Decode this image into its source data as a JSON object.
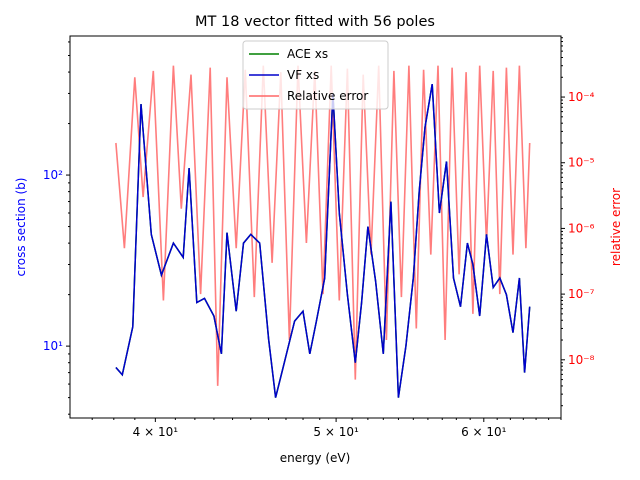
{
  "chart_data": {
    "type": "line",
    "title": "MT 18 vector fitted with 56 poles",
    "xlabel": "energy (eV)",
    "ylabel": "cross section (b)",
    "y2label": "relative error",
    "xscale": "log",
    "yscale": "log",
    "y2scale": "log",
    "xlim": [
      36.0,
      66.0
    ],
    "ylim": [
      3.8,
      650
    ],
    "y2lim": [
      1.3e-09,
      0.00085
    ],
    "x_ticks": [
      {
        "value": 40,
        "label": "4 × 10¹"
      },
      {
        "value": 50,
        "label": "5 × 10¹"
      },
      {
        "value": 60,
        "label": "6 × 10¹"
      }
    ],
    "y_ticks": [
      {
        "value": 10,
        "label": "10¹"
      },
      {
        "value": 100,
        "label": "10²"
      }
    ],
    "y2_ticks": [
      {
        "value": 1e-08,
        "label": "10⁻⁸"
      },
      {
        "value": 1e-07,
        "label": "10⁻⁷"
      },
      {
        "value": 1e-06,
        "label": "10⁻⁶"
      },
      {
        "value": 1e-05,
        "label": "10⁻⁵"
      },
      {
        "value": 0.0001,
        "label": "10⁻⁴"
      }
    ],
    "legend": {
      "placement": "upper-center",
      "entries": [
        {
          "name": "ACE xs",
          "color": "#008000"
        },
        {
          "name": "VF xs",
          "color": "#0000cc"
        },
        {
          "name": "Relative error",
          "color": "#ff6666"
        }
      ]
    },
    "series": [
      {
        "name": "ACE xs",
        "axis": "left",
        "color": "#008000",
        "x": [
          38.1,
          38.4,
          38.9,
          39.3,
          39.8,
          40.3,
          40.9,
          41.4,
          41.7,
          42.1,
          42.5,
          43.0,
          43.4,
          43.7,
          44.2,
          44.6,
          45.0,
          45.5,
          46.0,
          46.4,
          46.9,
          47.5,
          48.0,
          48.4,
          48.8,
          49.3,
          49.8,
          50.2,
          50.7,
          51.2,
          51.6,
          52.0,
          52.5,
          53.0,
          53.5,
          54.0,
          54.5,
          55.0,
          55.4,
          55.8,
          56.3,
          56.8,
          57.3,
          57.8,
          58.3,
          58.8,
          59.2,
          59.7,
          60.2,
          60.7,
          61.2,
          61.7,
          62.2,
          62.7,
          63.1,
          63.5
        ],
        "values": [
          7.5,
          6.8,
          13,
          260,
          45,
          26,
          40,
          33,
          110,
          18,
          19,
          15,
          9,
          46,
          16,
          40,
          45,
          40,
          11,
          5,
          8,
          14,
          16,
          9,
          14,
          25,
          300,
          60,
          20,
          8,
          18,
          50,
          24,
          9,
          70,
          5,
          10,
          25,
          80,
          190,
          340,
          60,
          120,
          25,
          17,
          40,
          30,
          15,
          45,
          22,
          25,
          20,
          12,
          25,
          7,
          17
        ]
      },
      {
        "name": "VF xs",
        "axis": "left",
        "color": "#0000cc",
        "x": [
          38.1,
          38.4,
          38.9,
          39.3,
          39.8,
          40.3,
          40.9,
          41.4,
          41.7,
          42.1,
          42.5,
          43.0,
          43.4,
          43.7,
          44.2,
          44.6,
          45.0,
          45.5,
          46.0,
          46.4,
          46.9,
          47.5,
          48.0,
          48.4,
          48.8,
          49.3,
          49.8,
          50.2,
          50.7,
          51.2,
          51.6,
          52.0,
          52.5,
          53.0,
          53.5,
          54.0,
          54.5,
          55.0,
          55.4,
          55.8,
          56.3,
          56.8,
          57.3,
          57.8,
          58.3,
          58.8,
          59.2,
          59.7,
          60.2,
          60.7,
          61.2,
          61.7,
          62.2,
          62.7,
          63.1,
          63.5
        ],
        "values": [
          7.5,
          6.8,
          13,
          260,
          45,
          26,
          40,
          33,
          110,
          18,
          19,
          15,
          9,
          46,
          16,
          40,
          45,
          40,
          11,
          5,
          8,
          14,
          16,
          9,
          14,
          25,
          300,
          60,
          20,
          8,
          18,
          50,
          24,
          9,
          70,
          5,
          10,
          25,
          80,
          190,
          340,
          60,
          120,
          25,
          17,
          40,
          30,
          15,
          45,
          22,
          25,
          20,
          12,
          25,
          7,
          17
        ]
      },
      {
        "name": "Relative error",
        "axis": "right",
        "color": "#ff6666",
        "x": [
          38.1,
          38.5,
          39.0,
          39.4,
          39.9,
          40.4,
          40.9,
          41.3,
          41.8,
          42.3,
          42.8,
          43.2,
          43.7,
          44.2,
          44.7,
          45.2,
          45.7,
          46.2,
          46.7,
          47.2,
          47.7,
          48.2,
          48.7,
          49.2,
          49.7,
          50.2,
          50.7,
          51.2,
          51.7,
          52.2,
          52.7,
          53.2,
          53.7,
          54.2,
          54.7,
          55.2,
          55.7,
          56.2,
          56.7,
          57.2,
          57.7,
          58.2,
          58.7,
          59.2,
          59.7,
          60.2,
          60.7,
          61.2,
          61.7,
          62.2,
          62.7,
          63.2,
          63.5
        ],
        "values": [
          2e-05,
          5e-07,
          0.0002,
          3e-06,
          0.00025,
          8e-08,
          0.0003,
          2e-06,
          0.00022,
          1e-07,
          0.00028,
          4e-09,
          0.0002,
          5e-07,
          0.00026,
          9e-08,
          0.0003,
          3e-07,
          0.00024,
          2e-08,
          0.0003,
          6e-07,
          0.00025,
          1e-07,
          0.0003,
          8e-08,
          0.00027,
          5e-09,
          0.00022,
          4e-07,
          0.0003,
          2e-08,
          0.00025,
          9e-08,
          0.0003,
          3e-08,
          0.00026,
          4e-07,
          0.0003,
          2e-08,
          0.00028,
          2e-07,
          0.00024,
          5e-08,
          0.0003,
          6e-07,
          0.00025,
          1e-07,
          0.00028,
          4e-07,
          0.0003,
          5e-07,
          2e-05
        ]
      }
    ]
  }
}
